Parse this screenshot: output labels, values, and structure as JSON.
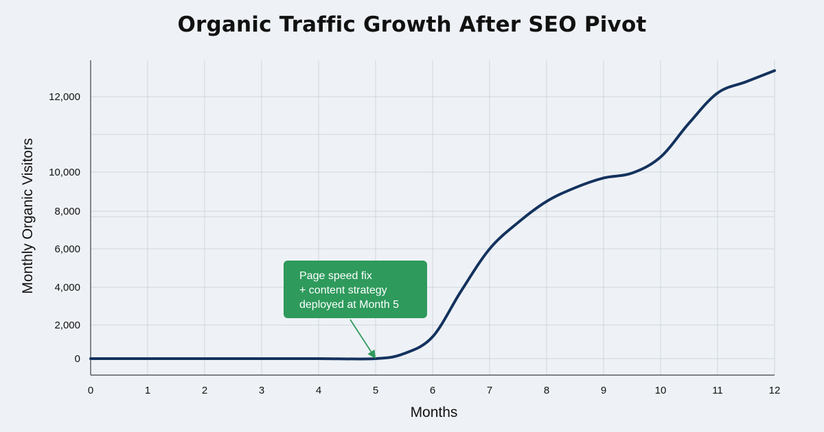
{
  "chart_data": {
    "type": "line",
    "title": "Organic Traffic Growth After SEO Pivot",
    "xlabel": "Months",
    "ylabel": "Monthly Organic Visitors",
    "xlim": [
      0,
      12
    ],
    "x_ticks": [
      0,
      1,
      2,
      3,
      4,
      5,
      6,
      7,
      8,
      9,
      10,
      11,
      12
    ],
    "y_ticks": [
      {
        "value": 0,
        "label": "0"
      },
      {
        "value": 2000,
        "label": "2,000"
      },
      {
        "value": 4000,
        "label": "4,000"
      },
      {
        "value": 6000,
        "label": "6,000"
      },
      {
        "value": 8000,
        "label": "8,000"
      },
      {
        "value": 10000,
        "label": "10,000"
      },
      {
        "value": 12000,
        "label": "12,000"
      }
    ],
    "grid": true,
    "series": [
      {
        "color": "#14325e",
        "points": [
          {
            "x": 0,
            "y": 0
          },
          {
            "x": 1,
            "y": 0
          },
          {
            "x": 2,
            "y": 0
          },
          {
            "x": 3,
            "y": 0
          },
          {
            "x": 4,
            "y": 0
          },
          {
            "x": 5,
            "y": 0
          },
          {
            "x": 5.5,
            "y": 300
          },
          {
            "x": 6,
            "y": 1300
          },
          {
            "x": 6.5,
            "y": 3800
          },
          {
            "x": 7,
            "y": 6000
          },
          {
            "x": 7.5,
            "y": 7400
          },
          {
            "x": 8,
            "y": 8500
          },
          {
            "x": 8.5,
            "y": 9200
          },
          {
            "x": 9,
            "y": 9700
          },
          {
            "x": 9.5,
            "y": 9950
          },
          {
            "x": 10,
            "y": 10400
          },
          {
            "x": 10.5,
            "y": 11300
          },
          {
            "x": 11,
            "y": 12300
          },
          {
            "x": 11.5,
            "y": 13200
          },
          {
            "x": 12,
            "y": 14100
          }
        ]
      }
    ],
    "annotation": {
      "lines": [
        "Page speed fix",
        "+ content strategy",
        "deployed at Month 5"
      ],
      "target": {
        "x": 5,
        "y": 0
      },
      "box_color": "#2e9a5c",
      "arrow_color": "#2e9a5c"
    }
  }
}
